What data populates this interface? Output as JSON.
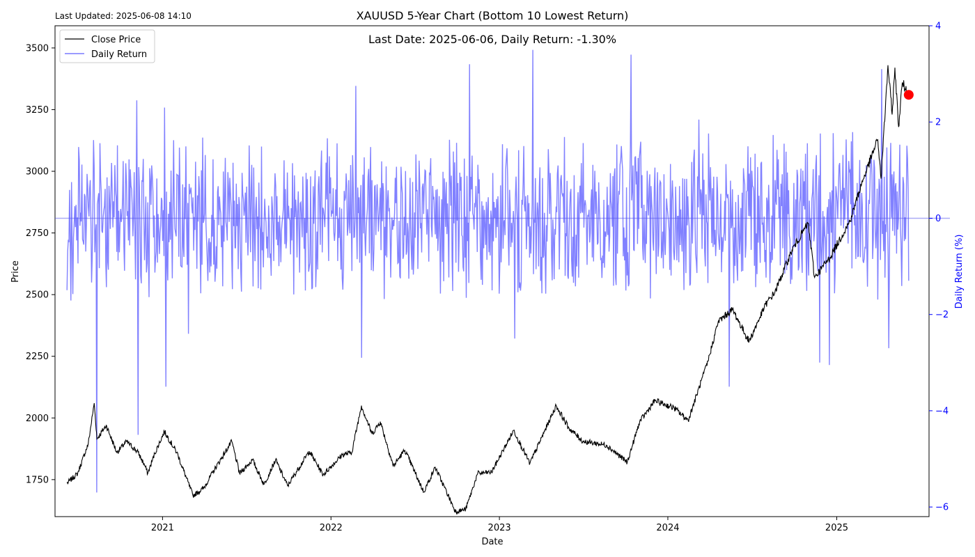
{
  "header": {
    "last_updated": "Last Updated: 2025-06-08 14:10"
  },
  "chart_data": {
    "type": "line",
    "title": "XAUUSD 5-Year Chart (Bottom 10 Lowest Return)",
    "annotation": "Last Date: 2025-06-06, Daily Return: -1.30%",
    "xlabel": "Date",
    "ylabel": "Price",
    "y2label": "Daily Return (%)",
    "x_tick_labels": [
      "2021",
      "2022",
      "2023",
      "2024",
      "2025"
    ],
    "y_ticks": [
      1750,
      2000,
      2250,
      2500,
      2750,
      3000,
      3250,
      3500
    ],
    "y2_ticks": [
      -6,
      -4,
      -2,
      0,
      2,
      4
    ],
    "xlim": [
      "2020-05-13",
      "2025-07-20"
    ],
    "ylim": [
      1600,
      3590
    ],
    "y2lim": [
      -6.2,
      4.0
    ],
    "grid": false,
    "legend_position": "top-left",
    "series": [
      {
        "name": "Close Price",
        "axis": "left",
        "color": "#000000",
        "points": [
          [
            "2020-06-08",
            1735
          ],
          [
            "2020-07-01",
            1775
          ],
          [
            "2020-07-24",
            1895
          ],
          [
            "2020-08-06",
            2060
          ],
          [
            "2020-08-12",
            1915
          ],
          [
            "2020-09-01",
            1970
          ],
          [
            "2020-09-24",
            1860
          ],
          [
            "2020-10-15",
            1905
          ],
          [
            "2020-11-09",
            1860
          ],
          [
            "2020-11-24",
            1805
          ],
          [
            "2020-11-30",
            1775
          ],
          [
            "2020-12-15",
            1855
          ],
          [
            "2021-01-05",
            1945
          ],
          [
            "2021-02-01",
            1860
          ],
          [
            "2021-03-08",
            1685
          ],
          [
            "2021-03-31",
            1715
          ],
          [
            "2021-04-20",
            1780
          ],
          [
            "2021-05-31",
            1905
          ],
          [
            "2021-06-17",
            1775
          ],
          [
            "2021-07-15",
            1830
          ],
          [
            "2021-08-09",
            1730
          ],
          [
            "2021-09-03",
            1830
          ],
          [
            "2021-09-29",
            1725
          ],
          [
            "2021-11-15",
            1865
          ],
          [
            "2021-12-15",
            1770
          ],
          [
            "2022-01-25",
            1850
          ],
          [
            "2022-02-15",
            1860
          ],
          [
            "2022-03-08",
            2050
          ],
          [
            "2022-03-31",
            1935
          ],
          [
            "2022-04-18",
            1985
          ],
          [
            "2022-05-16",
            1805
          ],
          [
            "2022-06-10",
            1870
          ],
          [
            "2022-07-21",
            1700
          ],
          [
            "2022-08-15",
            1800
          ],
          [
            "2022-09-28",
            1620
          ],
          [
            "2022-10-20",
            1630
          ],
          [
            "2022-11-15",
            1775
          ],
          [
            "2022-12-15",
            1780
          ],
          [
            "2023-02-01",
            1950
          ],
          [
            "2023-03-08",
            1815
          ],
          [
            "2023-05-04",
            2050
          ],
          [
            "2023-05-31",
            1960
          ],
          [
            "2023-07-01",
            1905
          ],
          [
            "2023-08-21",
            1890
          ],
          [
            "2023-10-05",
            1820
          ],
          [
            "2023-11-01",
            1985
          ],
          [
            "2023-12-04",
            2070
          ],
          [
            "2024-01-15",
            2040
          ],
          [
            "2024-02-14",
            1990
          ],
          [
            "2024-03-28",
            2230
          ],
          [
            "2024-04-19",
            2390
          ],
          [
            "2024-05-20",
            2440
          ],
          [
            "2024-06-25",
            2310
          ],
          [
            "2024-07-31",
            2460
          ],
          [
            "2024-08-20",
            2510
          ],
          [
            "2024-09-26",
            2680
          ],
          [
            "2024-10-31",
            2790
          ],
          [
            "2024-11-14",
            2570
          ],
          [
            "2024-12-17",
            2650
          ],
          [
            "2025-01-30",
            2800
          ],
          [
            "2025-02-24",
            2950
          ],
          [
            "2025-03-31",
            3130
          ],
          [
            "2025-04-07",
            2970
          ],
          [
            "2025-04-22",
            3430
          ],
          [
            "2025-05-01",
            3230
          ],
          [
            "2025-05-07",
            3420
          ],
          [
            "2025-05-15",
            3180
          ],
          [
            "2025-05-23",
            3360
          ],
          [
            "2025-06-06",
            3310
          ]
        ]
      },
      {
        "name": "Daily Return",
        "axis": "right",
        "color": "#7a7aff",
        "highlight_min": [
          {
            "date": "2020-08-11",
            "value": -5.7
          },
          {
            "date": "2020-11-09",
            "value": -4.5
          },
          {
            "date": "2021-01-08",
            "value": -3.5
          },
          {
            "date": "2021-02-26",
            "value": -2.4
          },
          {
            "date": "2022-03-09",
            "value": -2.9
          },
          {
            "date": "2023-02-03",
            "value": -2.5
          },
          {
            "date": "2024-05-13",
            "value": -3.5
          },
          {
            "date": "2024-11-25",
            "value": -3.0
          },
          {
            "date": "2024-12-16",
            "value": -3.05
          },
          {
            "date": "2025-04-24",
            "value": -2.7
          }
        ],
        "highlight_max": [
          {
            "date": "2020-11-06",
            "value": 2.45
          },
          {
            "date": "2021-01-06",
            "value": 2.3
          },
          {
            "date": "2022-02-24",
            "value": 2.75
          },
          {
            "date": "2022-10-28",
            "value": 3.2
          },
          {
            "date": "2023-03-14",
            "value": 3.5
          },
          {
            "date": "2023-10-13",
            "value": 3.4
          },
          {
            "date": "2024-03-08",
            "value": 2.05
          },
          {
            "date": "2025-04-09",
            "value": 3.1
          }
        ]
      }
    ],
    "baseline": {
      "axis": "right",
      "value": 0
    },
    "last_point": {
      "date": "2025-06-06",
      "price": 3310,
      "color": "#ff0000"
    }
  }
}
